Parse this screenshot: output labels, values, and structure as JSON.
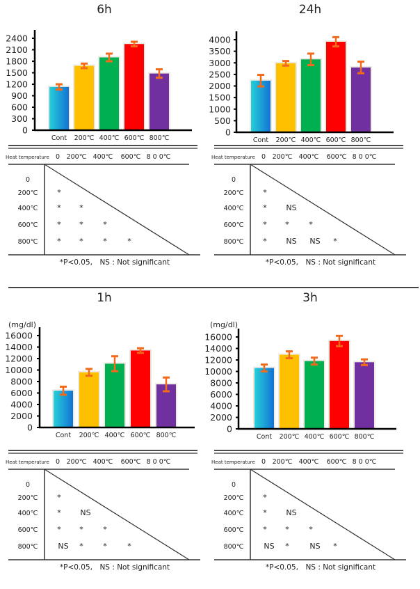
{
  "bar_colors": [
    "#1fa6dd",
    "#ffc000",
    "#00b050",
    "#ff0000",
    "#7030a0"
  ],
  "error_color": "#f26b1d",
  "chart_data": [
    {
      "type": "bar",
      "title": "6h",
      "unit_label": "",
      "categories": [
        "Cont",
        "200℃",
        "400℃",
        "600℃",
        "800℃"
      ],
      "values": [
        1130,
        1680,
        1900,
        2250,
        1480
      ],
      "errors": [
        70,
        60,
        100,
        60,
        110
      ],
      "yticks": [
        "0",
        "300",
        "600",
        "900",
        "1200",
        "1500",
        "1800",
        "2100",
        "2400"
      ],
      "ylim": [
        0,
        2400
      ],
      "grid": false,
      "table": {
        "header_label": "Heat temperature",
        "columns": [
          "0",
          "200℃",
          "400℃",
          "600℃",
          "8 0 0℃"
        ],
        "rows": [
          {
            "label": "0",
            "cells": []
          },
          {
            "label": "200℃",
            "cells": [
              "*"
            ]
          },
          {
            "label": "400℃",
            "cells": [
              "*",
              "*"
            ]
          },
          {
            "label": "600℃",
            "cells": [
              "*",
              "*",
              "*"
            ]
          },
          {
            "label": "800℃",
            "cells": [
              "*",
              "*",
              "*",
              "*"
            ]
          }
        ],
        "note": "*P<0.05,　NS : Not significant"
      }
    },
    {
      "type": "bar",
      "title": "24h",
      "unit_label": "",
      "categories": [
        "Cont",
        "200℃",
        "400℃",
        "600℃",
        "800℃"
      ],
      "values": [
        2230,
        2980,
        3150,
        3910,
        2800
      ],
      "errors": [
        250,
        100,
        250,
        200,
        250
      ],
      "yticks": [
        "0",
        "500",
        "1000",
        "1500",
        "2000",
        "2500",
        "3000",
        "3500",
        "4000"
      ],
      "ylim": [
        0,
        4000
      ],
      "grid": false,
      "table": {
        "header_label": "Heat temperature",
        "columns": [
          "0",
          "200℃",
          "400℃",
          "600℃",
          "8 0 0℃"
        ],
        "rows": [
          {
            "label": "0",
            "cells": []
          },
          {
            "label": "200℃",
            "cells": [
              "*"
            ]
          },
          {
            "label": "400℃",
            "cells": [
              "*",
              "NS"
            ]
          },
          {
            "label": "600℃",
            "cells": [
              "*",
              "*",
              "*"
            ]
          },
          {
            "label": "800℃",
            "cells": [
              "*",
              "NS",
              "NS",
              "*"
            ]
          }
        ],
        "note": "*P<0.05,　NS : Not significant"
      }
    },
    {
      "type": "bar",
      "title": "1h",
      "unit_label": "(mg/dl)",
      "categories": [
        "Cont",
        "200℃",
        "400℃",
        "600℃",
        "800℃"
      ],
      "values": [
        6400,
        9600,
        11100,
        13400,
        7500
      ],
      "errors": [
        700,
        600,
        1300,
        400,
        1200
      ],
      "yticks": [
        "0",
        "2000",
        "4000",
        "6000",
        "8000",
        "10000",
        "12000",
        "14000",
        "16000"
      ],
      "ylim": [
        0,
        16000
      ],
      "grid": false,
      "table": {
        "header_label": "Heat temperature",
        "columns": [
          "0",
          "200℃",
          "400℃",
          "600℃",
          "8 0 0℃"
        ],
        "rows": [
          {
            "label": "0",
            "cells": []
          },
          {
            "label": "200℃",
            "cells": [
              "*"
            ]
          },
          {
            "label": "400℃",
            "cells": [
              "*",
              "NS"
            ]
          },
          {
            "label": "600℃",
            "cells": [
              "*",
              "*",
              "*"
            ]
          },
          {
            "label": "800℃",
            "cells": [
              "NS",
              "*",
              "*",
              "*"
            ]
          }
        ],
        "note": "*P<0.05,　NS : Not significant"
      }
    },
    {
      "type": "bar",
      "title": "3h",
      "unit_label": "(mg/dl)",
      "categories": [
        "Cont",
        "200℃",
        "400℃",
        "600℃",
        "800℃"
      ],
      "values": [
        10600,
        12900,
        11800,
        15300,
        11600
      ],
      "errors": [
        600,
        600,
        600,
        900,
        500
      ],
      "yticks": [
        "0",
        "2000",
        "4000",
        "6000",
        "8000",
        "10000",
        "12000",
        "14000",
        "16000"
      ],
      "ylim": [
        0,
        16000
      ],
      "grid": false,
      "table": {
        "header_label": "Heat temperature",
        "columns": [
          "0",
          "200℃",
          "400℃",
          "600℃",
          "8 0 0℃"
        ],
        "rows": [
          {
            "label": "0",
            "cells": []
          },
          {
            "label": "200℃",
            "cells": [
              "*"
            ]
          },
          {
            "label": "400℃",
            "cells": [
              "*",
              "NS"
            ]
          },
          {
            "label": "600℃",
            "cells": [
              "*",
              "*",
              "*"
            ]
          },
          {
            "label": "800℃",
            "cells": [
              "NS",
              "*",
              "NS",
              "*"
            ]
          }
        ],
        "note": "*P<0.05,　NS : Not significant"
      }
    }
  ]
}
